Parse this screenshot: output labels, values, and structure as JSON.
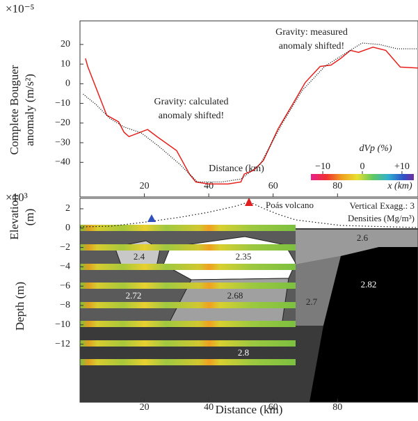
{
  "chart_data": [
    {
      "type": "line",
      "y_label_lines": [
        "Complete Bouguer",
        "anomaly (m/s²)"
      ],
      "y_multiplier": "×10⁻⁵",
      "x_label": "Distance (km)",
      "annotations": [
        "Gravity: calculated",
        "anomaly shifted!",
        "Gravity: measured",
        "anomaly shifted!"
      ],
      "xlim": [
        0,
        105
      ],
      "xticks": [
        20,
        40,
        60,
        80
      ],
      "ylim": [
        -57.6,
        32
      ],
      "yticks": [
        {
          "value": -40,
          "label": "−40"
        },
        {
          "value": -30,
          "label": "−30"
        },
        {
          "value": -20,
          "label": "−20"
        },
        {
          "value": -10,
          "label": "−10"
        },
        0,
        10,
        20
      ],
      "colorbar": {
        "label": "dVp (%)",
        "ticks": [
          {
            "value": -10,
            "label": "−10"
          },
          0,
          {
            "value": 10,
            "label": "+10"
          }
        ],
        "lim": [
          -13,
          13
        ],
        "axis_label": "x (km)"
      },
      "series": [
        {
          "name": "calculated",
          "color": "#e8201c",
          "style": "solid",
          "x": [
            1.7,
            2.4,
            8.3,
            12,
            13.7,
            15.2,
            21,
            24,
            30,
            34,
            36,
            40,
            46,
            50,
            51,
            54,
            57,
            61.5,
            66,
            70,
            74.6,
            78,
            81,
            84,
            86.5,
            91,
            95,
            99.5,
            105
          ],
          "values": [
            12.9,
            8.8,
            -16,
            -19.4,
            -24.7,
            -26.9,
            -23.3,
            -27,
            -34,
            -46,
            -50,
            -51,
            -51,
            -50,
            -46,
            -44,
            -39,
            -23,
            -10.6,
            0.7,
            8.8,
            9.5,
            12.9,
            17,
            16,
            18.6,
            17,
            8.5,
            8
          ]
        },
        {
          "name": "measured",
          "color": "#000000",
          "style": "dotted",
          "x": [
            1,
            5,
            9.3,
            13.7,
            19,
            24.6,
            31,
            36.5,
            44,
            50,
            56,
            63,
            69,
            76,
            81,
            87.6,
            93,
            98.5,
            105
          ],
          "values": [
            -5.3,
            -10.6,
            -17.7,
            -22,
            -25,
            -32,
            -41,
            -50,
            -50,
            -48.5,
            -41,
            -19.7,
            -3.5,
            8.8,
            14,
            20.7,
            20,
            17.8,
            17.8
          ]
        }
      ]
    },
    {
      "type": "section",
      "y_multiplier": "×10³",
      "y_labels": [
        "Elevation",
        "(m)",
        "Depth (m)"
      ],
      "x_label": "Distance (km)",
      "annotations": [
        "Poás volcano",
        "Vertical Exagg.: 3",
        "Densities (Mg/m³)"
      ],
      "densities": [
        2.4,
        2.35,
        2.6,
        2.72,
        2.68,
        2.7,
        2.82,
        2.8
      ],
      "xlim": [
        0,
        105
      ],
      "xticks": [
        20,
        40,
        60,
        80
      ],
      "ylim": [
        -18,
        3.08
      ],
      "yticks": [
        {
          "value": -12,
          "label": "−12"
        },
        {
          "value": -10,
          "label": "−10"
        },
        {
          "value": -8,
          "label": "−8"
        },
        {
          "value": -6,
          "label": "−6"
        },
        {
          "value": -4,
          "label": "−4"
        },
        {
          "value": -2,
          "label": "−2"
        },
        0,
        2
      ]
    }
  ]
}
